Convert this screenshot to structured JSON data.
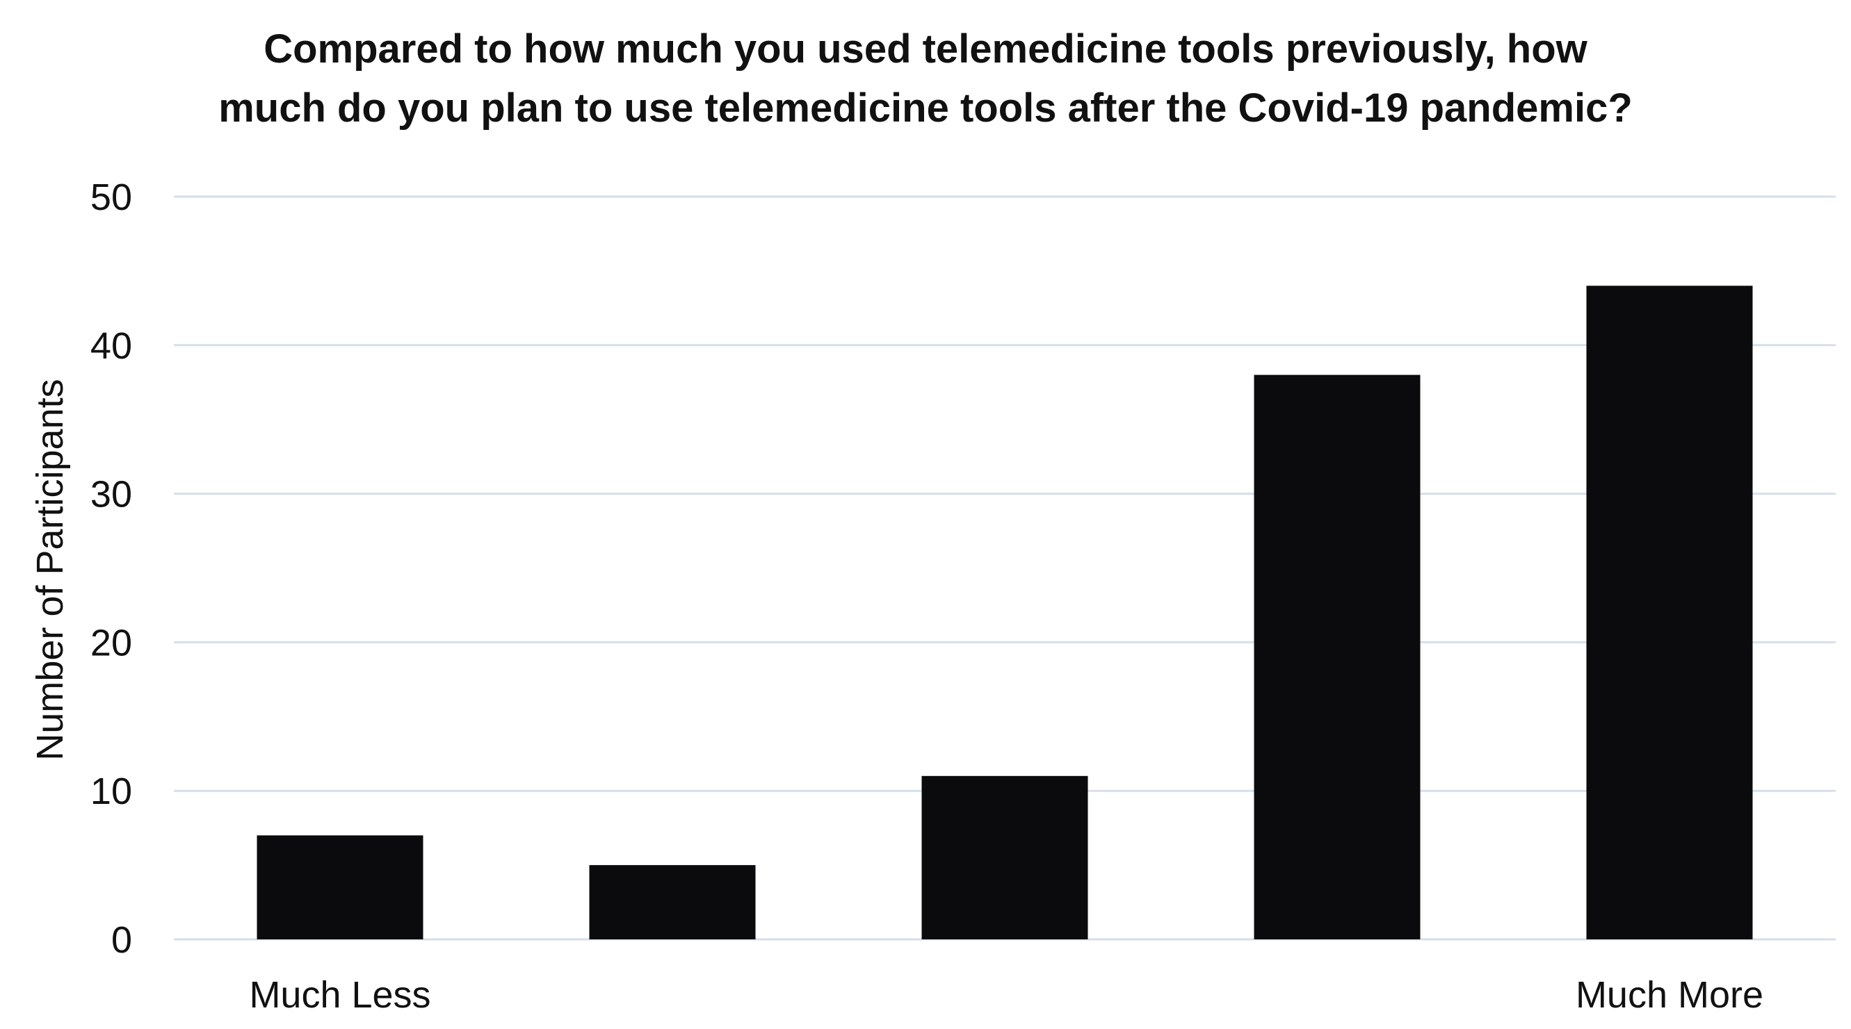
{
  "chart_data": {
    "type": "bar",
    "title_lines": [
      "Compared to how much you used telemedicine tools previously, how",
      "much do you plan to use telemedicine tools after the Covid-19 pandemic?"
    ],
    "categories": [
      "Much Less",
      "",
      "",
      "",
      "Much More"
    ],
    "values": [
      7,
      5,
      11,
      38,
      44
    ],
    "xlabel": "",
    "ylabel": "Number of Participants",
    "ylim": [
      0,
      50
    ],
    "yticks": [
      0,
      10,
      20,
      30,
      40,
      50
    ],
    "grid": true,
    "legend": "none",
    "bar_color": "#0b0b0d",
    "grid_color": "#d6dfec"
  }
}
